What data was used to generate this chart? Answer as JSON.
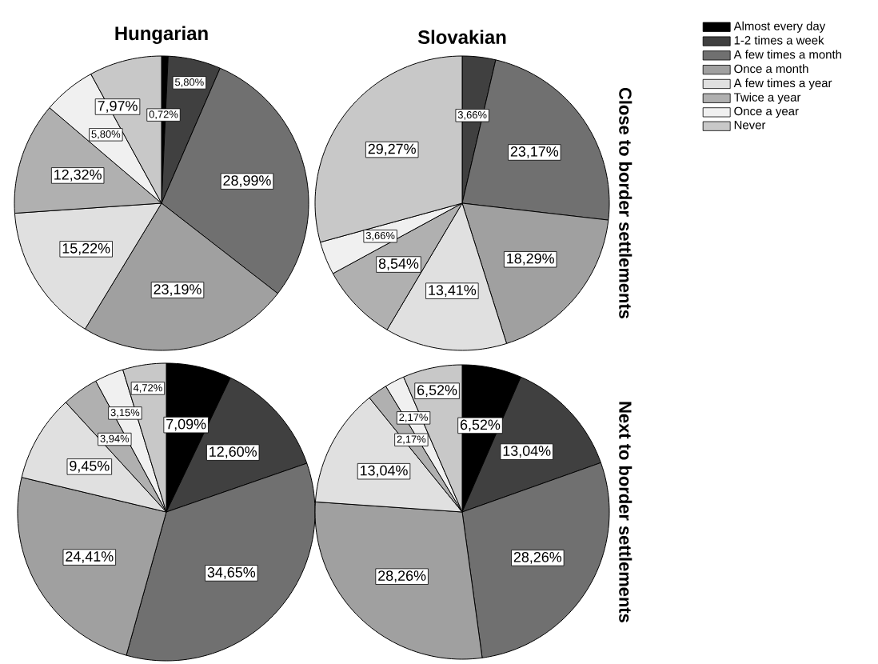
{
  "chart_data": [
    {
      "type": "pie",
      "title": "Hungarian",
      "values": [
        0.72,
        5.8,
        28.99,
        23.19,
        15.22,
        12.32,
        5.8,
        7.97
      ],
      "value_labels": [
        "0,72%",
        "5,80%",
        "28,99%",
        "23,19%",
        "15,22%",
        "12,32%",
        "5,80%",
        "7,97%"
      ],
      "colors": [
        "#000000",
        "#404040",
        "#707070",
        "#a0a0a0",
        "#e0e0e0",
        "#b0b0b0",
        "#f0f0f0",
        "#c8c8c8"
      ]
    },
    {
      "type": "pie",
      "title": "Slovakian",
      "y2label": "Close to border settlements",
      "legend": "top right",
      "categories": [
        "Almost every day",
        "1-2 times a week",
        "A few times a month",
        "Once a month",
        "A few times a year",
        "Twice a year",
        "Once a year",
        "Never"
      ],
      "values": [
        0,
        3.66,
        23.17,
        18.29,
        13.41,
        8.54,
        3.66,
        29.27
      ],
      "value_labels": [
        null,
        "3,66%",
        "23,17%",
        "18,29%",
        "13,41%",
        "8,54%",
        "3,66%",
        "29,27%"
      ],
      "colors": [
        "#000000",
        "#404040",
        "#707070",
        "#a0a0a0",
        "#e0e0e0",
        "#b0b0b0",
        "#f0f0f0",
        "#c8c8c8"
      ]
    },
    {
      "type": "pie",
      "values": [
        7.09,
        12.6,
        34.65,
        24.41,
        9.45,
        3.94,
        3.15,
        4.72
      ],
      "value_labels": [
        "7,09%",
        "12,60%",
        "34,65%",
        "24,41%",
        "9,45%",
        "3,94%",
        "3,15%",
        "4,72%"
      ],
      "colors": [
        "#000000",
        "#404040",
        "#707070",
        "#a0a0a0",
        "#e0e0e0",
        "#b0b0b0",
        "#f0f0f0",
        "#c8c8c8"
      ]
    },
    {
      "type": "pie",
      "y2label": "Next to border settlements",
      "values": [
        6.52,
        13.04,
        28.26,
        28.26,
        13.04,
        2.17,
        2.17,
        6.52
      ],
      "value_labels": [
        "6,52%",
        "13,04%",
        "28,26%",
        "28,26%",
        "13,04%",
        "2,17%",
        "2,17%",
        "6,52%"
      ],
      "colors": [
        "#000000",
        "#404040",
        "#707070",
        "#a0a0a0",
        "#e0e0e0",
        "#b0b0b0",
        "#f0f0f0",
        "#c8c8c8"
      ]
    }
  ]
}
